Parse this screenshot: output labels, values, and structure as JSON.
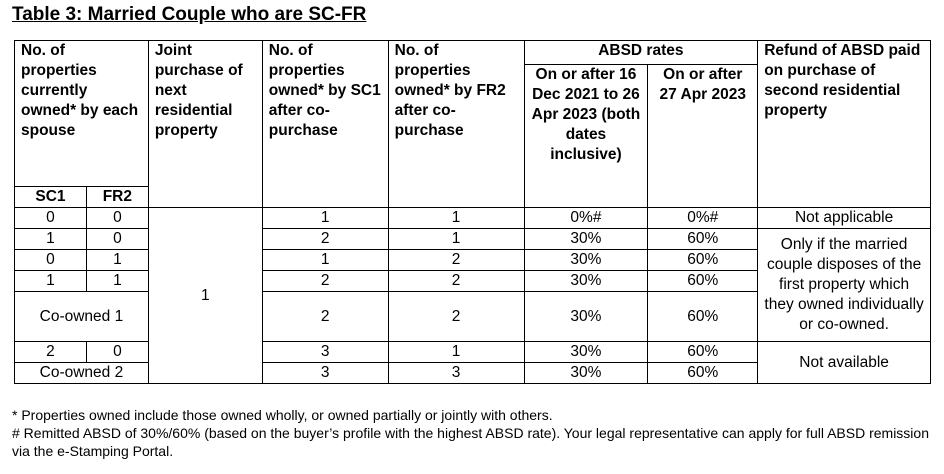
{
  "title": "Table 3: Married Couple who are SC-FR",
  "table": {
    "headers": [
      "No. of properties currently owned* by each spouse",
      "Joint purchase of next residential property",
      "No. of properties owned* by SC1 after co-purchase",
      "No. of properties owned* by FR2 after co-purchase",
      "ABSD rates",
      "Refund of ABSD paid on purchase of second residential property"
    ],
    "rate_headers": [
      "On or after 16 Dec 2021 to 26 Apr 2023 (both dates inclusive)",
      "On or after 27 Apr 2023"
    ],
    "spouse_headers": [
      "SC1",
      "FR2"
    ],
    "joint_purchase": "1",
    "rows": [
      [
        "0",
        "0",
        "1",
        "1",
        "0%#",
        "0%#"
      ],
      [
        "1",
        "0",
        "2",
        "1",
        "30%",
        "60%"
      ],
      [
        "0",
        "1",
        "1",
        "2",
        "30%",
        "60%"
      ],
      [
        "1",
        "1",
        "2",
        "2",
        "30%",
        "60%"
      ],
      [
        "Co-owned 1",
        "2",
        "2",
        "30%",
        "60%"
      ],
      [
        "2",
        "0",
        "3",
        "1",
        "30%",
        "60%"
      ],
      [
        "Co-owned 2",
        "3",
        "3",
        "30%",
        "60%"
      ]
    ],
    "refunds": [
      "Not applicable",
      "Only if the married couple disposes of the first property which they owned individually or co-owned.",
      "Not available"
    ]
  },
  "footnotes": [
    "* Properties owned include those owned wholly, or owned partially or jointly with others.",
    "# Remitted ABSD of 30%/60% (based on the buyer’s profile with the highest ABSD rate). Your legal representative can apply for full ABSD remission via the e-Stamping Portal."
  ]
}
